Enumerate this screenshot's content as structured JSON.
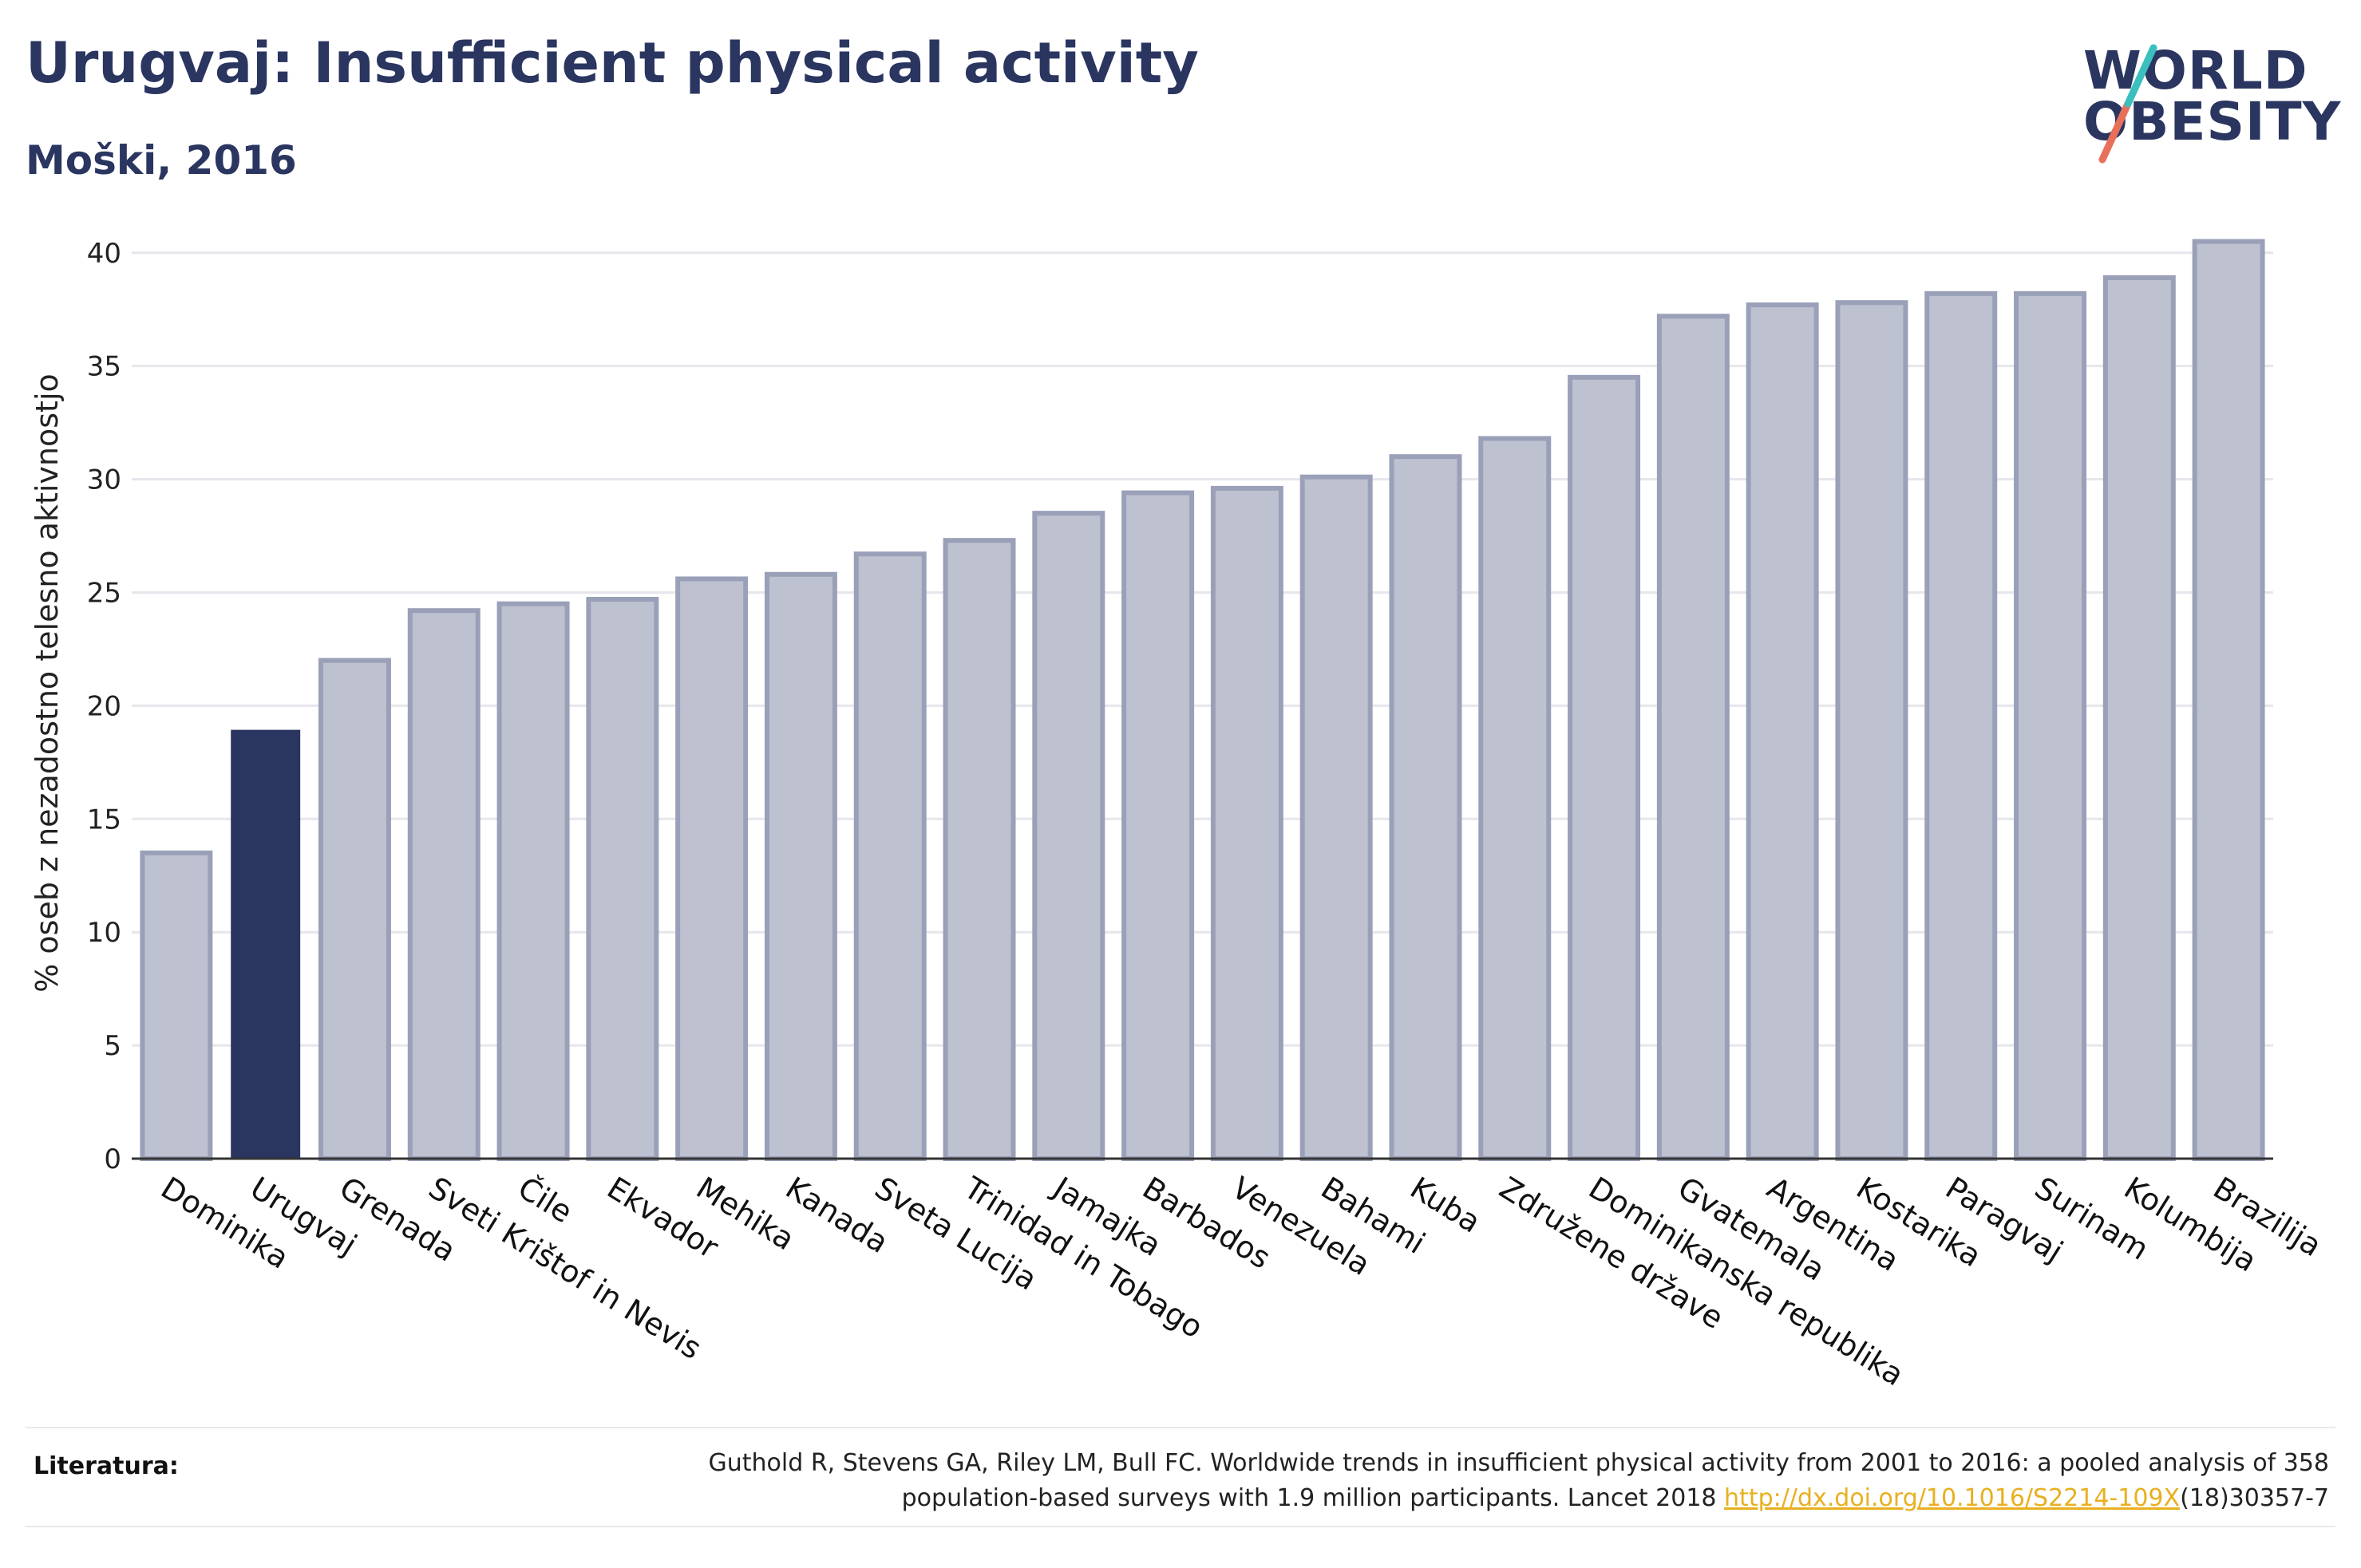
{
  "header": {
    "title": "Urugvaj: Insufficient physical activity",
    "subtitle": "Moški, 2016"
  },
  "logo": {
    "line1": "WORLD",
    "line2": "OBESITY"
  },
  "colors": {
    "highlight": "#2a3560",
    "bar_fill": "#bec1cf",
    "bar_stroke": "#9aa0b8",
    "grid": "#e6e6ec",
    "logo_teal": "#3bbfbf",
    "logo_red": "#e8705a"
  },
  "chart_data": {
    "type": "bar",
    "title": "Urugvaj: Insufficient physical activity",
    "subtitle": "Moški, 2016",
    "xlabel": "",
    "ylabel": "% oseb z nezadostno telesno aktivnostjo",
    "ylim": [
      0,
      42
    ],
    "yticks": [
      0,
      5,
      10,
      15,
      20,
      25,
      30,
      35,
      40
    ],
    "grid": true,
    "highlight_category": "Urugvaj",
    "categories": [
      "Dominika",
      "Urugvaj",
      "Grenada",
      "Sveti Krištof in Nevis",
      "Čile",
      "Ekvador",
      "Mehika",
      "Kanada",
      "Sveta Lucija",
      "Trinidad in Tobago",
      "Jamajka",
      "Barbados",
      "Venezuela",
      "Bahami",
      "Kuba",
      "Združene države",
      "Dominikanska republika",
      "Gvatemala",
      "Argentina",
      "Kostarika",
      "Paragvaj",
      "Surinam",
      "Kolumbija",
      "Brazilija"
    ],
    "values": [
      13.5,
      18.9,
      22.0,
      24.2,
      24.5,
      24.7,
      25.6,
      25.8,
      26.7,
      27.3,
      28.5,
      29.4,
      29.6,
      30.1,
      31.0,
      31.8,
      34.5,
      37.2,
      37.7,
      37.8,
      38.2,
      38.2,
      38.9,
      40.5
    ]
  },
  "references": {
    "label": "Literatura:",
    "text_before": "Guthold R, Stevens GA, Riley LM, Bull FC. Worldwide trends in insufficient physical activity from 2001 to 2016: a pooled analysis of 358 population-based surveys with 1.9 million participants. Lancet 2018 ",
    "link": "http://dx.doi.org/10.1016/S2214-109X",
    "text_after": "(18)30357-7"
  }
}
